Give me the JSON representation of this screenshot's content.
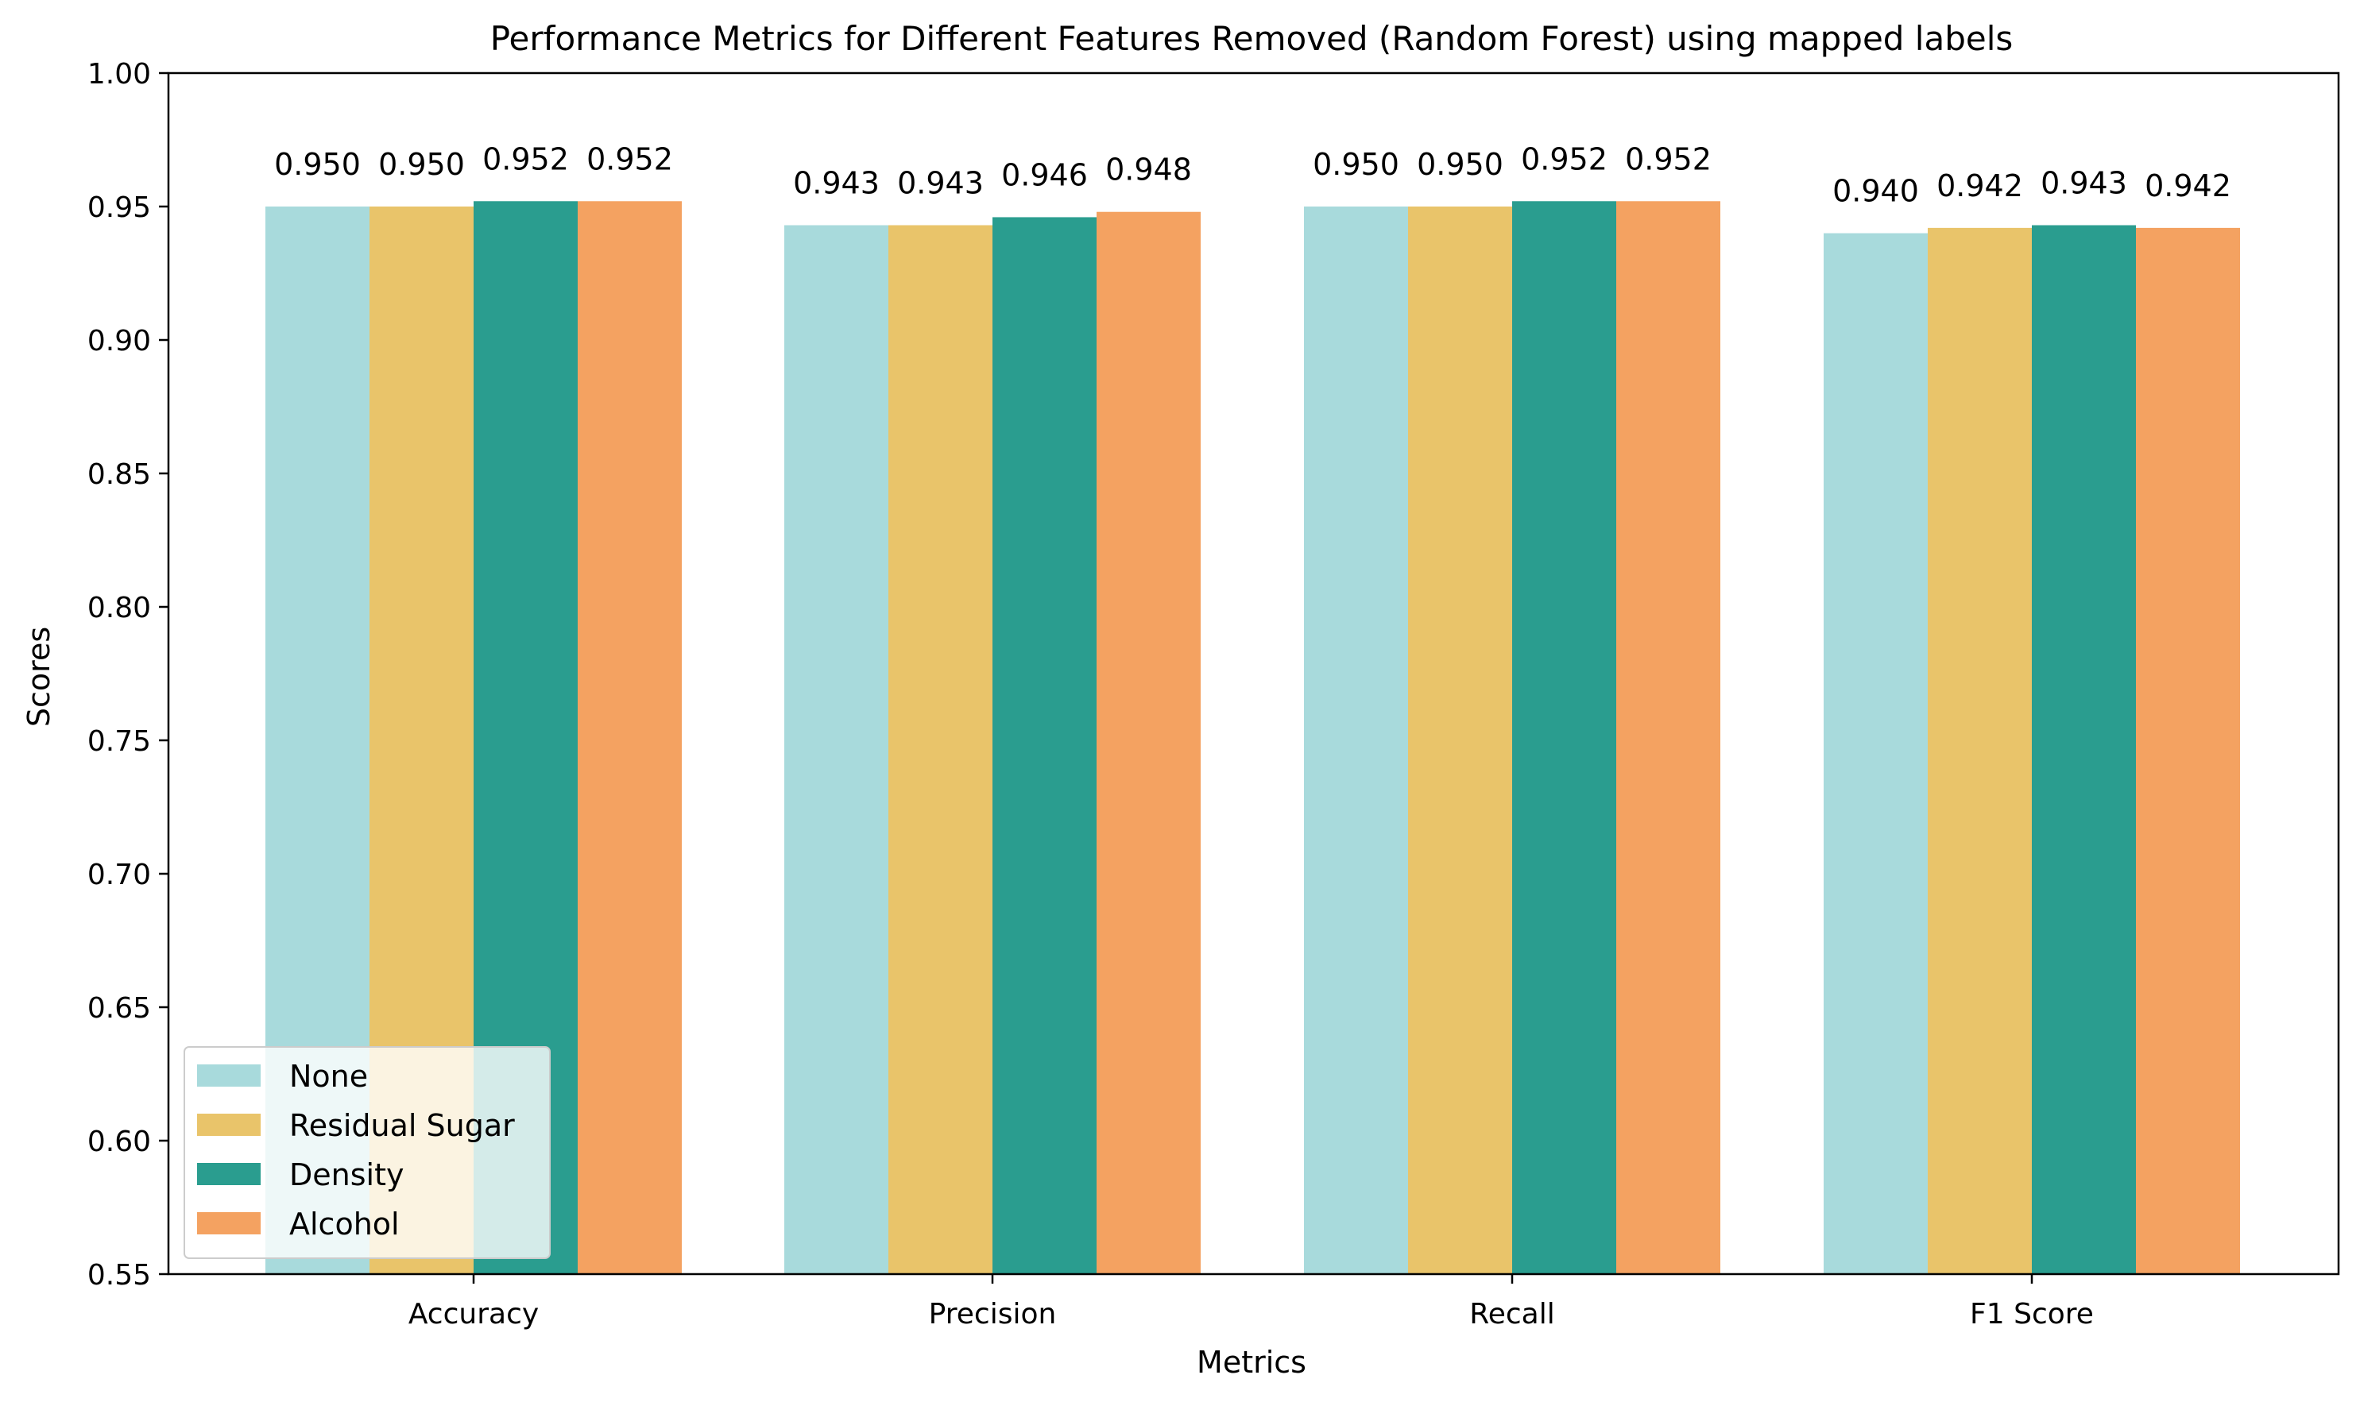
{
  "chart_data": {
    "type": "bar",
    "title": "Performance Metrics for Different Features Removed (Random Forest) using mapped labels",
    "xlabel": "Metrics",
    "ylabel": "Scores",
    "ylim": [
      0.55,
      1.0
    ],
    "yticks": [
      0.55,
      0.6,
      0.65,
      0.7,
      0.75,
      0.8,
      0.85,
      0.9,
      0.95,
      1.0
    ],
    "categories": [
      "Accuracy",
      "Precision",
      "Recall",
      "F1 Score"
    ],
    "series": [
      {
        "name": "None",
        "color": "#a8dadc",
        "values": [
          0.95,
          0.943,
          0.95,
          0.94
        ]
      },
      {
        "name": "Residual Sugar",
        "color": "#e9c46a",
        "values": [
          0.95,
          0.943,
          0.95,
          0.942
        ]
      },
      {
        "name": "Density",
        "color": "#2a9d8f",
        "values": [
          0.952,
          0.946,
          0.952,
          0.943
        ]
      },
      {
        "name": "Alcohol",
        "color": "#f4a261",
        "values": [
          0.952,
          0.948,
          0.952,
          0.942
        ]
      }
    ],
    "grid": false,
    "legend_position": "lower-left",
    "value_format_decimals": 3
  }
}
